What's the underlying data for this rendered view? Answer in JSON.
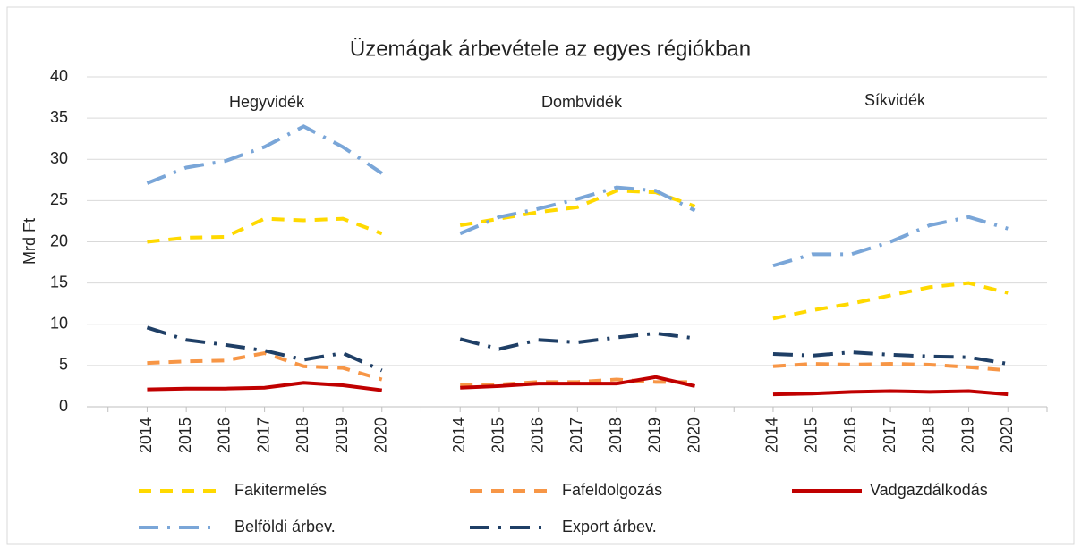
{
  "chart_data": {
    "type": "line",
    "title": "Üzemágak árbevétele az egyes régiókban",
    "y_label": "Mrd Ft",
    "annotations": [
      "Hegyvidék",
      "Dombvidék",
      "Síkvidék"
    ],
    "categories": [
      null,
      null,
      "2014",
      "2015",
      "2016",
      "2017",
      "2018",
      "2019",
      "2020",
      null,
      "2014",
      "2015",
      "2016",
      "2017",
      "2018",
      "2019",
      "2020",
      null,
      "2014",
      "2015",
      "2016",
      "2017",
      "2018",
      "2019",
      "2020",
      null
    ],
    "series": [
      {
        "name": "Fakitermelés",
        "color": "#ffd900",
        "values": [
          null,
          null,
          20,
          20.5,
          20.6,
          22.8,
          22.6,
          22.8,
          21,
          null,
          22,
          22.8,
          23.6,
          24.2,
          26.2,
          26,
          24.3,
          null,
          10.7,
          11.7,
          12.5,
          13.5,
          14.5,
          15,
          13.8,
          null
        ]
      },
      {
        "name": "Fafeldolgozás",
        "color": "#f79646",
        "values": [
          null,
          null,
          5.3,
          5.5,
          5.6,
          6.5,
          4.9,
          4.7,
          3.3,
          null,
          2.6,
          2.7,
          3.0,
          3.0,
          3.3,
          3.0,
          3.0,
          null,
          4.9,
          5.2,
          5.1,
          5.2,
          5.1,
          4.8,
          4.4,
          null
        ]
      },
      {
        "name": "Vadgazdálkodás",
        "color": "#c00000",
        "values": [
          null,
          null,
          2.1,
          2.2,
          2.2,
          2.3,
          2.9,
          2.6,
          2.0,
          null,
          2.3,
          2.5,
          2.8,
          2.8,
          2.8,
          3.6,
          2.5,
          null,
          1.5,
          1.6,
          1.8,
          1.9,
          1.8,
          1.9,
          1.5,
          null
        ]
      },
      {
        "name": "Belföldi árbev.",
        "color": "#7aa6d8",
        "values": [
          null,
          null,
          27.1,
          29,
          29.8,
          31.5,
          34,
          31.5,
          28.3,
          null,
          21,
          23,
          24,
          25.2,
          26.6,
          26.2,
          23.8,
          null,
          17.1,
          18.5,
          18.5,
          20,
          22,
          23,
          21.6,
          null
        ]
      },
      {
        "name": "Export árbev.",
        "color": "#1f3f66",
        "values": [
          null,
          null,
          9.6,
          8.1,
          7.5,
          6.8,
          5.7,
          6.5,
          4.4,
          null,
          8.2,
          7.0,
          8.1,
          7.8,
          8.4,
          8.9,
          8.3,
          null,
          6.4,
          6.2,
          6.6,
          6.3,
          6.1,
          6.0,
          5.2,
          null
        ]
      }
    ],
    "ylim": [
      0,
      40
    ],
    "yticks": [
      0,
      5,
      10,
      15,
      20,
      25,
      30,
      35,
      40
    ],
    "grid": true
  }
}
